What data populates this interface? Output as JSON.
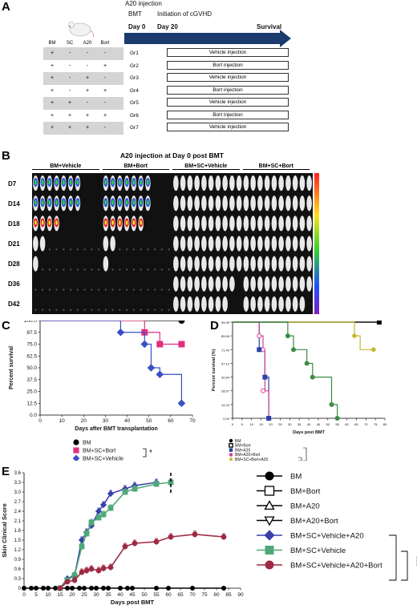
{
  "panels": {
    "a": "A",
    "b": "B",
    "c": "C",
    "d": "D",
    "e": "E"
  },
  "panel_a": {
    "header_lines": [
      "A20 injection",
      "BMT",
      "Day 0"
    ],
    "cgvhd_label": "Initiation of cGVHD",
    "day20": "Day 20",
    "survival": "Survival",
    "columns": [
      "BM",
      "SC",
      "A20",
      "Bort"
    ],
    "groups": [
      {
        "label": "Gr1",
        "cells": [
          "+",
          "-",
          "-",
          "-"
        ],
        "injection": "Vehicle injection"
      },
      {
        "label": "Gr2",
        "cells": [
          "+",
          "-",
          "-",
          "+"
        ],
        "injection": "Bort injection"
      },
      {
        "label": "Gr3",
        "cells": [
          "+",
          "-",
          "+",
          "-"
        ],
        "injection": "Vehicle injection"
      },
      {
        "label": "Gr4",
        "cells": [
          "+",
          "-",
          "+",
          "+"
        ],
        "injection": "Bort injection"
      },
      {
        "label": "Gr5",
        "cells": [
          "+",
          "+",
          "-",
          "-"
        ],
        "injection": "Vehicle injection"
      },
      {
        "label": "Gr6",
        "cells": [
          "+",
          "+",
          "+",
          "+"
        ],
        "injection": "Bort injection"
      },
      {
        "label": "Gr7",
        "cells": [
          "+",
          "+",
          "+",
          "-"
        ],
        "injection": "Vehicle injection"
      }
    ]
  },
  "panel_b": {
    "title": "A20 injection at Day 0 post BMT",
    "groups": [
      "BM+Vehicle",
      "BM+Bort",
      "BM+SC+Vehicle",
      "BM+SC+Bort"
    ],
    "days": [
      "D7",
      "D14",
      "D18",
      "D21",
      "D28",
      "D36",
      "D42"
    ]
  },
  "chart_data": [
    {
      "id": "C",
      "type": "line",
      "xlabel": "Days after BMT transplantation",
      "ylabel": "Percent survival",
      "xlim": [
        0,
        70
      ],
      "ylim": [
        0,
        100
      ],
      "xticks": [
        0,
        10,
        20,
        30,
        40,
        50,
        60,
        70
      ],
      "yticks": [
        "0.0",
        "12.5",
        "25.0",
        "37.5",
        "50.0",
        "62.5",
        "75.0",
        "87.5",
        "100.0"
      ],
      "series": [
        {
          "name": "BM",
          "color": "#000000",
          "marker": "circle",
          "steps": [
            [
              0,
              100
            ],
            [
              65,
              100
            ]
          ]
        },
        {
          "name": "BM+SC+Bort",
          "color": "#e0307f",
          "marker": "square",
          "steps": [
            [
              0,
              100
            ],
            [
              48,
              87.5
            ],
            [
              55,
              75
            ],
            [
              65,
              75
            ]
          ]
        },
        {
          "name": "BM+SC+Vehicle",
          "color": "#3a4fc4",
          "marker": "diamond",
          "steps": [
            [
              0,
              100
            ],
            [
              37,
              87.5
            ],
            [
              48,
              75
            ],
            [
              51,
              50
            ],
            [
              55,
              43
            ],
            [
              65,
              12.5
            ]
          ]
        }
      ],
      "significance": "*"
    },
    {
      "id": "D",
      "type": "line",
      "xlabel": "Days post BMT",
      "ylabel": "Percent survival (%)",
      "xlim": [
        0,
        80
      ],
      "ylim": [
        0,
        100
      ],
      "xticks": [
        0,
        5,
        10,
        15,
        20,
        25,
        30,
        35,
        40,
        45,
        50,
        55,
        60,
        65,
        70,
        75,
        80
      ],
      "yticks": [
        "0.00",
        "14.29",
        "28.57",
        "42.84",
        "57.12",
        "71.40",
        "85.68",
        "99.99"
      ],
      "series": [
        {
          "name": "BM",
          "color": "#000000",
          "steps": [
            [
              0,
              100
            ],
            [
              77,
              100
            ]
          ]
        },
        {
          "name": "BM+Bort",
          "color": "#000000",
          "steps": [
            [
              0,
              100
            ],
            [
              77,
              100
            ]
          ]
        },
        {
          "name": "BM+A20",
          "color": "#2e3fa8",
          "steps": [
            [
              0,
              100
            ],
            [
              14,
              71.4
            ],
            [
              17,
              42.8
            ],
            [
              19,
              0
            ]
          ]
        },
        {
          "name": "BM+A20+Bort",
          "color": "#d23e9a",
          "steps": [
            [
              0,
              100
            ],
            [
              14,
              85.7
            ],
            [
              16,
              71.4
            ],
            [
              17,
              28.6
            ],
            [
              19,
              0
            ]
          ]
        },
        {
          "name": "BM+SC+Bort+A20",
          "color": "#c8b830",
          "steps": [
            [
              0,
              100
            ],
            [
              64,
              85.7
            ],
            [
              67,
              71.4
            ],
            [
              74,
              71.4
            ]
          ]
        },
        {
          "name": "BM+SC+Vehicle+A20",
          "color": "#3d8b48",
          "steps": [
            [
              0,
              100
            ],
            [
              29,
              85.7
            ],
            [
              32,
              71.4
            ],
            [
              39,
              57.1
            ],
            [
              42,
              42.8
            ],
            [
              52,
              14.3
            ],
            [
              55,
              0
            ]
          ]
        }
      ]
    },
    {
      "id": "E",
      "type": "line",
      "xlabel": "Days post BMT",
      "ylabel": "Skin Clinical Score",
      "xlim": [
        0,
        90
      ],
      "ylim": [
        0,
        3.6
      ],
      "xticks": [
        0,
        5,
        10,
        15,
        20,
        25,
        30,
        35,
        40,
        45,
        50,
        55,
        60,
        65,
        70,
        75,
        80,
        85,
        90
      ],
      "yticks": [
        "0",
        "0.3",
        "0.6",
        "0.9",
        "1.2",
        "1.5",
        "1.8",
        "2.1",
        "2.4",
        "2.7",
        "3.0",
        "3.3",
        "3.6"
      ],
      "series": [
        {
          "name": "BM",
          "color": "#000000",
          "marker": "circle",
          "x": [
            0,
            3,
            5,
            8,
            10,
            13,
            15,
            18,
            20,
            23,
            25,
            28,
            30,
            33,
            35,
            40,
            43,
            45,
            55,
            60,
            70,
            83
          ],
          "y": [
            0,
            0,
            0,
            0,
            0,
            0,
            0,
            0,
            0,
            0,
            0,
            0,
            0,
            0,
            0,
            0,
            0,
            0,
            0,
            0,
            0,
            0
          ]
        },
        {
          "name": "BM+Bort",
          "color": "#000000",
          "marker": "square-open",
          "x": [],
          "y": []
        },
        {
          "name": "BM+A20",
          "color": "#000000",
          "marker": "triangle-up-open",
          "x": [],
          "y": []
        },
        {
          "name": "BM+A20+Bort",
          "color": "#000000",
          "marker": "triangle-down-open",
          "x": [],
          "y": []
        },
        {
          "name": "BM+SC+Vehicle+A20",
          "color": "#3a40a8",
          "marker": "diamond",
          "x": [
            15,
            18,
            21,
            24,
            26,
            28,
            31,
            33,
            36,
            42,
            46,
            55
          ],
          "y": [
            0,
            0.3,
            0.4,
            1.5,
            1.75,
            1.95,
            2.4,
            2.6,
            2.95,
            3.1,
            3.2,
            3.3
          ]
        },
        {
          "name": "BM+SC+Vehicle",
          "color": "#4fa878",
          "marker": "square",
          "x": [
            15,
            18,
            21,
            24,
            26,
            28,
            31,
            33,
            36,
            42,
            46,
            55,
            61
          ],
          "y": [
            0,
            0.25,
            0.4,
            1.3,
            1.7,
            2.05,
            2.2,
            2.3,
            2.5,
            3.0,
            3.1,
            3.25,
            3.3
          ]
        },
        {
          "name": "BM+SC+Vehicle+A20+Bort",
          "color": "#9e2a44",
          "marker": "circle",
          "x": [
            15,
            18,
            21,
            24,
            26,
            28,
            31,
            33,
            36,
            42,
            46,
            55,
            61,
            71,
            83
          ],
          "y": [
            0,
            0.2,
            0.25,
            0.5,
            0.55,
            0.6,
            0.55,
            0.62,
            0.65,
            1.3,
            1.4,
            1.45,
            1.6,
            1.68,
            1.6
          ]
        }
      ],
      "significance": "***"
    }
  ]
}
